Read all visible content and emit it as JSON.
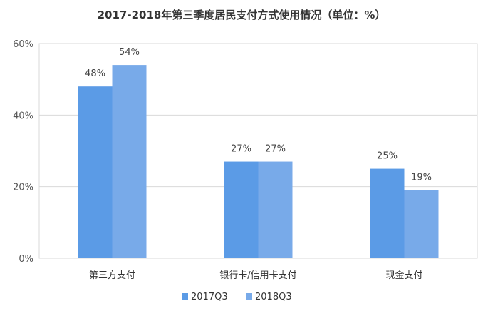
{
  "chart_data": {
    "type": "bar",
    "title": "2017-2018年第三季度居民支付方式使用情况（单位：%）",
    "categories": [
      "第三方支付",
      "银行卡/信用卡支付",
      "现金支付"
    ],
    "series": [
      {
        "name": "2017Q3",
        "values": [
          48,
          27,
          25
        ],
        "labels": [
          "48%",
          "27%",
          "25%"
        ],
        "color": "#5B9BE6"
      },
      {
        "name": "2018Q3",
        "values": [
          54,
          27,
          19
        ],
        "labels": [
          "54%",
          "27%",
          "19%"
        ],
        "color": "#78AAE9"
      }
    ],
    "yticks": [
      0,
      20,
      40,
      60
    ],
    "ytick_labels": [
      "0%",
      "20%",
      "40%",
      "60%"
    ],
    "ylim": [
      0,
      60
    ],
    "grid": true,
    "legend_position": "bottom-center",
    "axis_color": "#D9D9D9"
  }
}
